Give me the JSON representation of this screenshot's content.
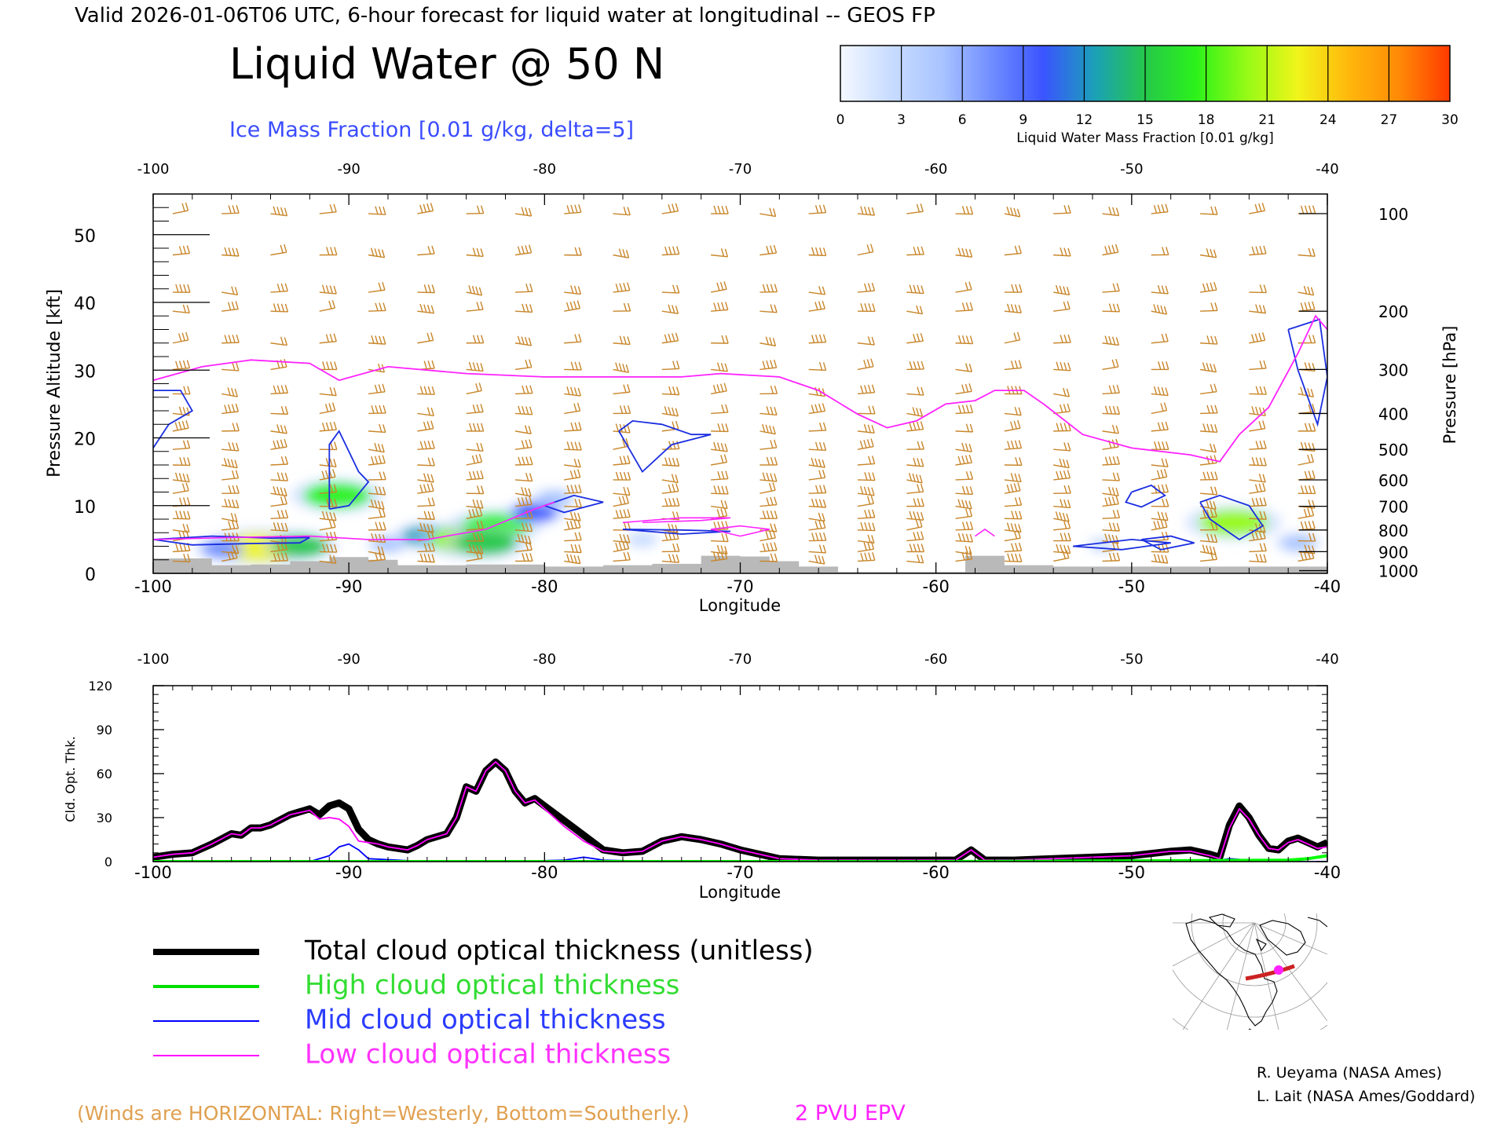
{
  "header": {
    "valid_line": "Valid 2026-01-06T06 UTC, 6-hour forecast for liquid water at longitudinal -- GEOS FP",
    "title": "Liquid Water @ 50 N",
    "subtitle": "Ice Mass Fraction [0.01 g/kg, delta=5]"
  },
  "colorbar": {
    "label": "Liquid Water Mass Fraction [0.01 g/kg]",
    "ticks": [
      "0",
      "3",
      "6",
      "9",
      "12",
      "15",
      "18",
      "21",
      "24",
      "27",
      "30"
    ],
    "colors": [
      "#f4f8ff",
      "#c8dcff",
      "#a9c4ff",
      "#6f8cff",
      "#3a54ff",
      "#1ba0b8",
      "#26c84a",
      "#2bf21a",
      "#96fa16",
      "#f0f51a",
      "#ffb80c",
      "#ff8a06",
      "#ff3a00"
    ]
  },
  "chart_data": [
    {
      "type": "heatmap",
      "xlabel": "Longitude",
      "ylabel_left": "Pressure Altitude [kft]",
      "ylabel_right": "Pressure [hPa]",
      "xlim": [
        -100,
        -40
      ],
      "ylim": [
        0,
        56
      ],
      "x_ticks": [
        -100,
        -90,
        -80,
        -70,
        -60,
        -50,
        -40
      ],
      "x_tick_labels": [
        "-100",
        "-90",
        "-80",
        "-70",
        "-60",
        "-50",
        "-40"
      ],
      "y_ticks": [
        0,
        10,
        20,
        30,
        40,
        50
      ],
      "y_tick_labels": [
        "0",
        "10",
        "20",
        "30",
        "40",
        "50"
      ],
      "pressure_ticks": [
        {
          "hpa": "100",
          "kft": 53.1
        },
        {
          "hpa": "200",
          "kft": 38.7
        },
        {
          "hpa": "300",
          "kft": 30.1
        },
        {
          "hpa": "400",
          "kft": 23.6
        },
        {
          "hpa": "500",
          "kft": 18.3
        },
        {
          "hpa": "600",
          "kft": 13.8
        },
        {
          "hpa": "700",
          "kft": 9.9
        },
        {
          "hpa": "800",
          "kft": 6.4
        },
        {
          "hpa": "900",
          "kft": 3.2
        },
        {
          "hpa": "1000",
          "kft": 0.4
        }
      ],
      "liquid_water_blobs": [
        {
          "lon": -94.5,
          "kft": 3.8,
          "value": 22
        },
        {
          "lon": -92.5,
          "kft": 4.0,
          "value": 14
        },
        {
          "lon": -96.5,
          "kft": 3.6,
          "value": 8
        },
        {
          "lon": -90.6,
          "kft": 11.5,
          "value": 18
        },
        {
          "lon": -88.0,
          "kft": 4.3,
          "value": 5
        },
        {
          "lon": -86.0,
          "kft": 5.5,
          "value": 12
        },
        {
          "lon": -84.0,
          "kft": 5.0,
          "value": 20
        },
        {
          "lon": -82.5,
          "kft": 7.0,
          "value": 18
        },
        {
          "lon": -83.0,
          "kft": 4.5,
          "value": 16
        },
        {
          "lon": -80.5,
          "kft": 9.0,
          "value": 10
        },
        {
          "lon": -79.5,
          "kft": 11.0,
          "value": 6
        },
        {
          "lon": -75.0,
          "kft": 5.0,
          "value": 3
        },
        {
          "lon": -51.5,
          "kft": 4.2,
          "value": 2
        },
        {
          "lon": -44.8,
          "kft": 7.5,
          "value": 19
        },
        {
          "lon": -41.5,
          "kft": 4.5,
          "value": 6
        }
      ],
      "ice_contours": [
        [
          [
            -100,
            18.5
          ],
          [
            -99.2,
            22
          ],
          [
            -98,
            24
          ],
          [
            -98.6,
            27
          ],
          [
            -100,
            27
          ]
        ],
        [
          [
            -91,
            9.5
          ],
          [
            -91,
            19
          ],
          [
            -90.5,
            21
          ],
          [
            -89.5,
            15
          ],
          [
            -89,
            13.5
          ],
          [
            -90,
            10
          ],
          [
            -91,
            9.5
          ]
        ],
        [
          [
            -76.2,
            21
          ],
          [
            -75.5,
            22.5
          ],
          [
            -74,
            22
          ],
          [
            -72.5,
            20.5
          ],
          [
            -71.5,
            20.5
          ],
          [
            -73.5,
            19
          ],
          [
            -75,
            15
          ],
          [
            -76.2,
            21
          ]
        ],
        [
          [
            -80,
            10
          ],
          [
            -78.5,
            11.5
          ],
          [
            -77,
            10.5
          ],
          [
            -79,
            9
          ],
          [
            -80,
            10
          ]
        ],
        [
          [
            -50,
            12
          ],
          [
            -49,
            13
          ],
          [
            -48.3,
            11.5
          ],
          [
            -49.5,
            9.8
          ],
          [
            -50.3,
            10.5
          ],
          [
            -50,
            12
          ]
        ],
        [
          [
            -46.5,
            10.5
          ],
          [
            -45.5,
            11.5
          ],
          [
            -44,
            10
          ],
          [
            -43.3,
            7
          ],
          [
            -44.5,
            5
          ],
          [
            -46,
            8
          ],
          [
            -46.5,
            10.5
          ]
        ],
        [
          [
            -53,
            4
          ],
          [
            -50,
            5
          ],
          [
            -48,
            4.5
          ],
          [
            -50.5,
            3.5
          ],
          [
            -53,
            4
          ]
        ],
        [
          [
            -49.5,
            5
          ],
          [
            -48,
            5.5
          ],
          [
            -46.8,
            4.5
          ],
          [
            -48.5,
            3.5
          ],
          [
            -49.5,
            5
          ]
        ],
        [
          [
            -42,
            36
          ],
          [
            -40.4,
            37.5
          ],
          [
            -40,
            29
          ],
          [
            -40.5,
            22
          ],
          [
            -41,
            26
          ],
          [
            -41.5,
            30
          ],
          [
            -42,
            36
          ]
        ],
        [
          [
            -100,
            5
          ],
          [
            -97,
            5.5
          ],
          [
            -94,
            5.2
          ],
          [
            -92,
            5.3
          ],
          [
            -92.5,
            4.5
          ],
          [
            -95,
            4.4
          ],
          [
            -98,
            4.2
          ],
          [
            -100,
            5
          ]
        ],
        [
          [
            -76,
            6.5
          ],
          [
            -73,
            6.4
          ],
          [
            -70.5,
            6.2
          ],
          [
            -73,
            5.8
          ],
          [
            -76,
            6.5
          ]
        ]
      ],
      "epv_2pvu": [
        [
          -100,
          28.5
        ],
        [
          -97.5,
          30.5
        ],
        [
          -95,
          31.5
        ],
        [
          -92,
          31
        ],
        [
          -90.5,
          28.5
        ],
        [
          -88,
          30.5
        ],
        [
          -84,
          29.5
        ],
        [
          -80,
          29
        ],
        [
          -77,
          29
        ],
        [
          -73,
          29
        ],
        [
          -71,
          29.5
        ],
        [
          -68,
          29
        ],
        [
          -66,
          27
        ],
        [
          -64,
          23.5
        ],
        [
          -62.5,
          21.5
        ],
        [
          -61,
          22.5
        ],
        [
          -59.5,
          25
        ],
        [
          -58,
          25.5
        ],
        [
          -57,
          27
        ],
        [
          -55.5,
          27
        ],
        [
          -54.5,
          25
        ],
        [
          -52.5,
          20.5
        ],
        [
          -50,
          18.5
        ],
        [
          -47,
          17.5
        ],
        [
          -45.5,
          16.5
        ],
        [
          -44.5,
          20.5
        ],
        [
          -43,
          24.5
        ],
        [
          -41.5,
          32.5
        ],
        [
          -40.6,
          38
        ],
        [
          -40,
          36
        ]
      ],
      "epv_low_contours": [
        [
          [
            -100,
            5.0
          ],
          [
            -96,
            5.3
          ],
          [
            -92,
            5.5
          ],
          [
            -89,
            5.0
          ],
          [
            -86,
            5.0
          ],
          [
            -83,
            6.5
          ],
          [
            -80.5,
            9.5
          ],
          [
            -79.5,
            10.5
          ]
        ],
        [
          [
            -76,
            7.5
          ],
          [
            -73,
            8.2
          ],
          [
            -70.5,
            8.2
          ],
          [
            -72,
            7.8
          ],
          [
            -75,
            7.5
          ]
        ],
        [
          [
            -71.5,
            6.5
          ],
          [
            -70,
            7
          ],
          [
            -68.5,
            6.5
          ],
          [
            -70,
            5.5
          ],
          [
            -71.5,
            6.5
          ]
        ],
        [
          [
            -58,
            5.5
          ],
          [
            -57.5,
            6.5
          ],
          [
            -57,
            5.5
          ]
        ]
      ],
      "terrain": [
        [
          -100,
          2.2
        ],
        [
          -98.5,
          2.2
        ],
        [
          -97,
          1.2
        ],
        [
          -95,
          1.3
        ],
        [
          -93,
          1.8
        ],
        [
          -91,
          2.4
        ],
        [
          -89,
          2.0
        ],
        [
          -87.5,
          1.2
        ],
        [
          -84,
          1.3
        ],
        [
          -80,
          1.0
        ],
        [
          -77,
          1.2
        ],
        [
          -74.5,
          1.4
        ],
        [
          -72,
          2.6
        ],
        [
          -70,
          2.5
        ],
        [
          -68.5,
          1.8
        ],
        [
          -67,
          1.0
        ],
        [
          -65,
          0.2
        ],
        [
          -58.5,
          0.2
        ],
        [
          -58.5,
          2.6
        ],
        [
          -56.8,
          2.6
        ],
        [
          -56.5,
          1.2
        ],
        [
          -55,
          1.2
        ],
        [
          -54,
          1.0
        ],
        [
          -40,
          1.0
        ]
      ],
      "wind_barbs_note": "Winds are HORIZONTAL: Right=Westerly, Bottom=Southerly.",
      "epv_label": "2 PVU EPV"
    },
    {
      "type": "line",
      "xlabel": "Longitude",
      "ylabel": "Cld. Opt. Thk.",
      "xlim": [
        -100,
        -40
      ],
      "ylim": [
        0,
        120
      ],
      "x_ticks": [
        -100,
        -90,
        -80,
        -70,
        -60,
        -50,
        -40
      ],
      "x_tick_labels": [
        "-100",
        "-90",
        "-80",
        "-70",
        "-60",
        "-50",
        "-40"
      ],
      "y_ticks": [
        0,
        30,
        60,
        90,
        120
      ],
      "y_tick_labels": [
        "0",
        "30",
        "60",
        "90",
        "120"
      ],
      "series": [
        {
          "name": "Total cloud optical thickness (unitless)",
          "color": "#000000",
          "x": [
            -100,
            -99,
            -98,
            -97,
            -96,
            -95.5,
            -95,
            -94.5,
            -94,
            -93,
            -92,
            -91.5,
            -91,
            -90.5,
            -90,
            -89.5,
            -89,
            -88.5,
            -88,
            -87,
            -86.5,
            -86,
            -85,
            -84.5,
            -84,
            -83.5,
            -83,
            -82.5,
            -82,
            -81.5,
            -81,
            -80.5,
            -80,
            -79,
            -78,
            -77,
            -76,
            -75,
            -74,
            -73,
            -72,
            -71,
            -70,
            -68,
            -66,
            -64,
            -62,
            -60,
            -59,
            -58.2,
            -57.5,
            -56,
            -54,
            -52,
            -50,
            -48,
            -47,
            -46,
            -45.5,
            -45,
            -44.5,
            -44,
            -43.5,
            -43,
            -42.5,
            -42,
            -41.5,
            -41,
            -40.5,
            -40
          ],
          "values": [
            3,
            5,
            6,
            12,
            19,
            18,
            23,
            23,
            25,
            32,
            36,
            32,
            38,
            40,
            36,
            22,
            15,
            12,
            10,
            8,
            11,
            15,
            19,
            30,
            51,
            48,
            62,
            68,
            62,
            48,
            40,
            43,
            38,
            28,
            18,
            8,
            6,
            7,
            14,
            17,
            15,
            12,
            8,
            2,
            1,
            1,
            1,
            1,
            1,
            8,
            1,
            1,
            2,
            3,
            4,
            7,
            8,
            5,
            3,
            25,
            38,
            30,
            18,
            9,
            8,
            14,
            16,
            13,
            10,
            13
          ]
        },
        {
          "name": "High cloud optical thickness",
          "color": "#00ff00",
          "x": [
            -100,
            -60,
            -50,
            -45,
            -42,
            -41,
            -40
          ],
          "values": [
            0,
            0,
            0.5,
            0.8,
            1,
            2,
            4
          ]
        },
        {
          "name": "Mid cloud optical thickness",
          "color": "#0000ff",
          "x": [
            -100,
            -92,
            -91,
            -90.5,
            -90,
            -89.5,
            -89,
            -86,
            -82,
            -79,
            -78,
            -77,
            -74,
            -70,
            -60,
            -50,
            -46,
            -45,
            -44,
            -42,
            -40
          ],
          "values": [
            0,
            0,
            4,
            10,
            12,
            8,
            2,
            0,
            0,
            1,
            3,
            1,
            0,
            0,
            0,
            0,
            0,
            2,
            1,
            0,
            0
          ]
        },
        {
          "name": "Low cloud optical thickness",
          "color": "#ff00ff",
          "x": [
            -100,
            -99,
            -98,
            -97,
            -96,
            -95.5,
            -95,
            -94.5,
            -94,
            -93,
            -92,
            -91.5,
            -91,
            -90.5,
            -90,
            -89.5,
            -89,
            -88.5,
            -88,
            -87,
            -86.5,
            -86,
            -85,
            -84.5,
            -84,
            -83.5,
            -83,
            -82.5,
            -82,
            -81.5,
            -81,
            -80.5,
            -80,
            -79,
            -78,
            -77,
            -76,
            -75,
            -74,
            -73,
            -72,
            -71,
            -70,
            -68,
            -66,
            -64,
            -62,
            -60,
            -59,
            -58.2,
            -57.5,
            -56,
            -54,
            -52,
            -50,
            -48,
            -47,
            -46,
            -45.5,
            -45,
            -44.5,
            -44,
            -43.5,
            -43,
            -42.5,
            -42,
            -41.5,
            -41,
            -40.5,
            -40
          ],
          "values": [
            3,
            5,
            6,
            12,
            19,
            18,
            23,
            23,
            25,
            32,
            35,
            29,
            30,
            29,
            24,
            14,
            13,
            12,
            10,
            8,
            11,
            15,
            19,
            30,
            51,
            48,
            62,
            68,
            62,
            48,
            40,
            42,
            36,
            24,
            14,
            7,
            6,
            7,
            14,
            17,
            15,
            12,
            8,
            2,
            1,
            1,
            1,
            1,
            1,
            8,
            1,
            1,
            2,
            3,
            4,
            7,
            7,
            4,
            2,
            23,
            36,
            29,
            18,
            9,
            8,
            13,
            15,
            12,
            9,
            10
          ]
        }
      ]
    }
  ],
  "legend": {
    "total": "Total cloud optical thickness (unitless)",
    "high": "High cloud optical thickness",
    "mid": "Mid cloud optical thickness",
    "low": "Low cloud optical thickness"
  },
  "footer": {
    "winds_note": "(Winds are HORIZONTAL: Right=Westerly, Bottom=Southerly.)",
    "epv_label": "2 PVU EPV",
    "credit_1": "R. Ueyama (NASA Ames)",
    "credit_2": "L. Lait (NASA Ames/Goddard)"
  },
  "colors": {
    "wind_barb": "#c8862a",
    "ice_contour": "#1a2ee0",
    "epv": "#ff22ff",
    "terrain": "#b9b9b9",
    "text_blue": "#3a4cff",
    "legend_green": "#33dd33",
    "legend_blue": "#2a3cff",
    "legend_magenta": "#ff33ff",
    "footer_orange": "#e0a050",
    "map_track": "#cc2222",
    "map_marker": "#ff22ff"
  }
}
